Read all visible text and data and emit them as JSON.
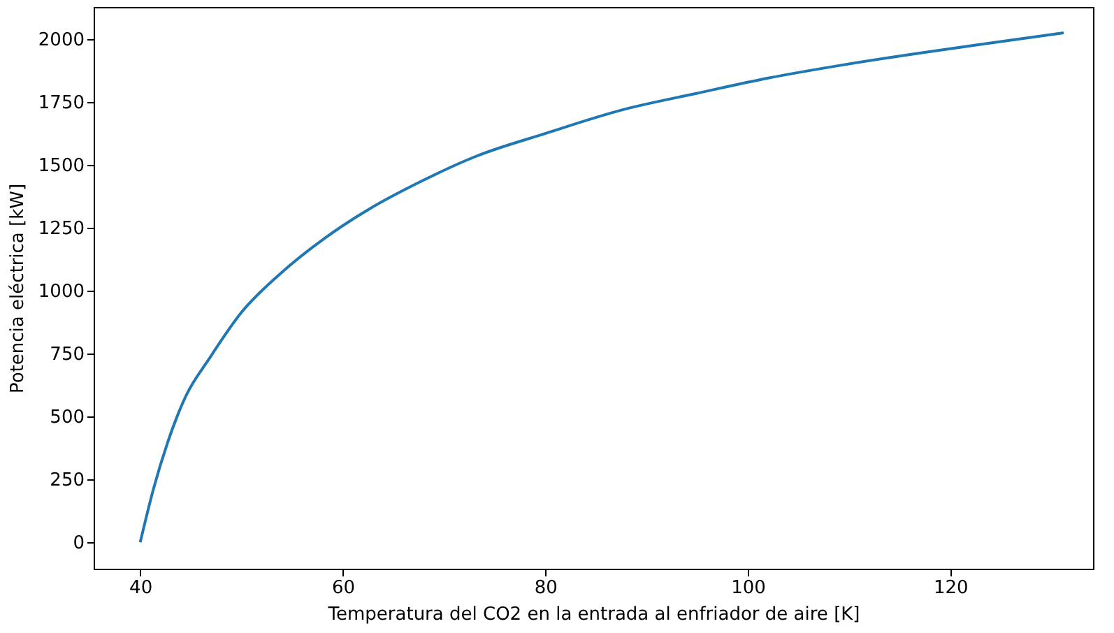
{
  "chart_data": {
    "type": "line",
    "xlabel": "Temperatura del CO2 en la entrada al enfriador de aire [K]",
    "ylabel": "Potencia eléctrica [kW]",
    "x": [
      40,
      41.3,
      42.7,
      44.5,
      46.8,
      50.0,
      53.7,
      58.3,
      62.5,
      67.5,
      73.2,
      80,
      87.7,
      95,
      102.1,
      109,
      116.5,
      124,
      131.2
    ],
    "series": [
      {
        "color": "#1f77b4",
        "values": [
          0,
          211,
          396,
          581,
          729,
          914,
          1063,
          1211,
          1322,
          1430,
          1535,
          1625,
          1720,
          1785,
          1846,
          1895,
          1942,
          1985,
          2025
        ]
      }
    ],
    "xlim": [
      35.4,
      134.1
    ],
    "ylim": [
      -105,
      2128
    ],
    "xticks": [
      40,
      60,
      80,
      100,
      120
    ],
    "yticks": [
      0,
      250,
      500,
      750,
      1000,
      1250,
      1500,
      1750,
      2000
    ],
    "grid": false,
    "marker": "none",
    "line_style": "solid"
  }
}
